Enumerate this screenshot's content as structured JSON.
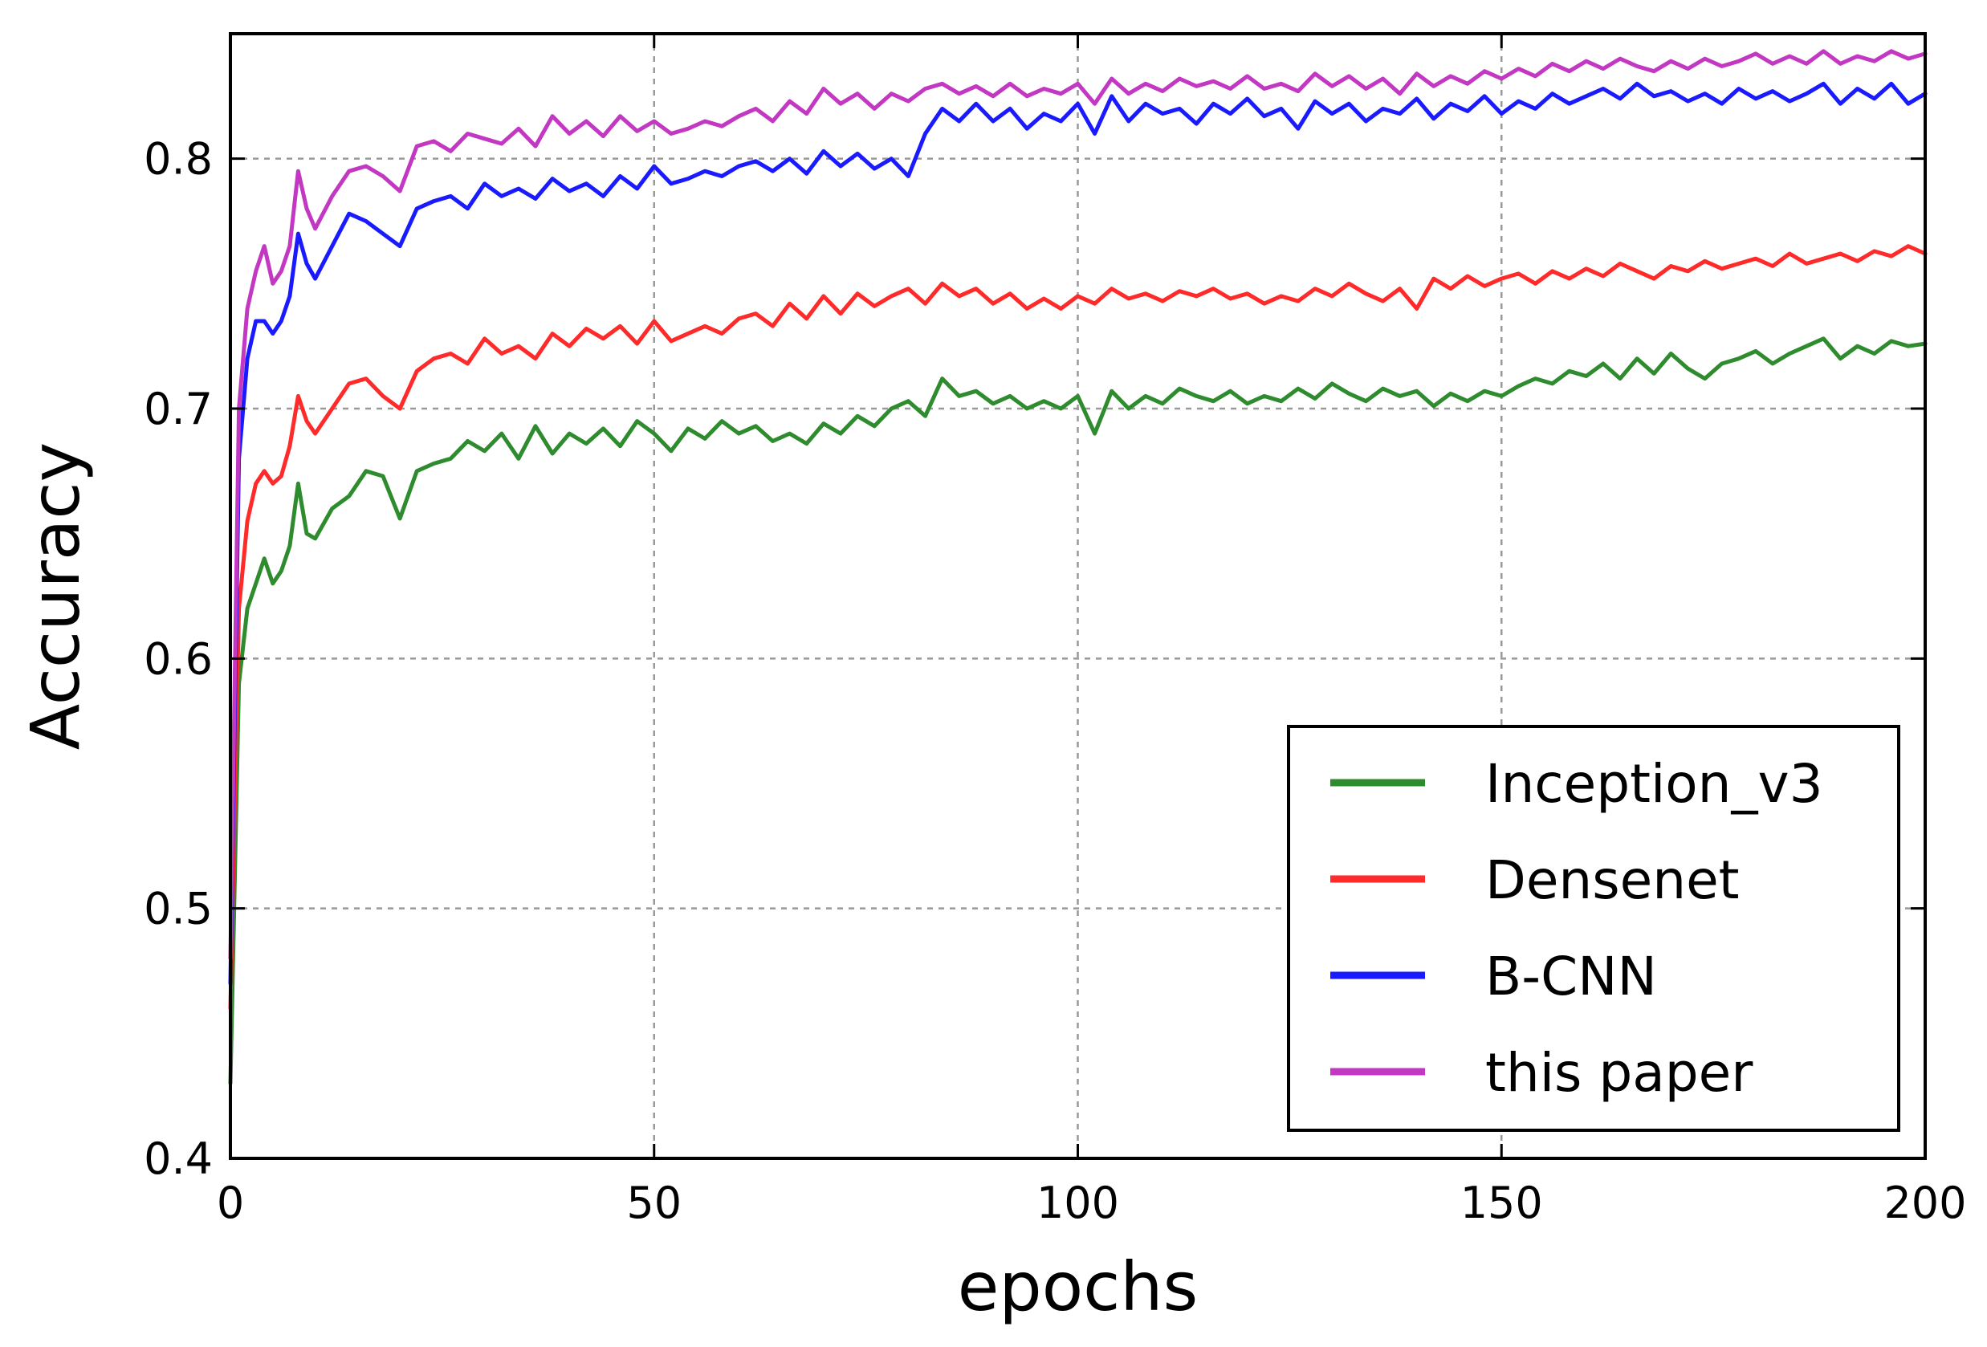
{
  "chart_data": {
    "type": "line",
    "title": "",
    "xlabel": "epochs",
    "ylabel": "Accuracy",
    "xlim": [
      0,
      200
    ],
    "ylim": [
      0.4,
      0.85
    ],
    "x_ticks": [
      0,
      50,
      100,
      150,
      200
    ],
    "x_tick_labels": [
      "0",
      "50",
      "100",
      "150",
      "200"
    ],
    "y_ticks": [
      0.4,
      0.5,
      0.6,
      0.7,
      0.8
    ],
    "y_tick_labels": [
      "0.4",
      "0.5",
      "0.6",
      "0.7",
      "0.8"
    ],
    "grid": true,
    "legend_position": "bottom-right",
    "series": [
      {
        "name": "Inception_v3",
        "color": "#2e8b2e",
        "x": [
          0,
          1,
          2,
          3,
          4,
          5,
          6,
          7,
          8,
          9,
          10,
          12,
          14,
          16,
          18,
          20,
          22,
          24,
          26,
          28,
          30,
          32,
          34,
          36,
          38,
          40,
          42,
          44,
          46,
          48,
          50,
          52,
          54,
          56,
          58,
          60,
          62,
          64,
          66,
          68,
          70,
          72,
          74,
          76,
          78,
          80,
          82,
          84,
          86,
          88,
          90,
          92,
          94,
          96,
          98,
          100,
          102,
          104,
          106,
          108,
          110,
          112,
          114,
          116,
          118,
          120,
          122,
          124,
          126,
          128,
          130,
          132,
          134,
          136,
          138,
          140,
          142,
          144,
          146,
          148,
          150,
          152,
          154,
          156,
          158,
          160,
          162,
          164,
          166,
          168,
          170,
          172,
          174,
          176,
          178,
          180,
          182,
          184,
          186,
          188,
          190,
          192,
          194,
          196,
          198,
          200
        ],
        "values": [
          0.43,
          0.59,
          0.62,
          0.63,
          0.64,
          0.63,
          0.635,
          0.645,
          0.67,
          0.65,
          0.648,
          0.66,
          0.665,
          0.675,
          0.673,
          0.656,
          0.675,
          0.678,
          0.68,
          0.687,
          0.683,
          0.69,
          0.68,
          0.693,
          0.682,
          0.69,
          0.686,
          0.692,
          0.685,
          0.695,
          0.69,
          0.683,
          0.692,
          0.688,
          0.695,
          0.69,
          0.693,
          0.687,
          0.69,
          0.686,
          0.694,
          0.69,
          0.697,
          0.693,
          0.7,
          0.703,
          0.697,
          0.712,
          0.705,
          0.707,
          0.702,
          0.705,
          0.7,
          0.703,
          0.7,
          0.705,
          0.69,
          0.707,
          0.7,
          0.705,
          0.702,
          0.708,
          0.705,
          0.703,
          0.707,
          0.702,
          0.705,
          0.703,
          0.708,
          0.704,
          0.71,
          0.706,
          0.703,
          0.708,
          0.705,
          0.707,
          0.701,
          0.706,
          0.703,
          0.707,
          0.705,
          0.709,
          0.712,
          0.71,
          0.715,
          0.713,
          0.718,
          0.712,
          0.72,
          0.714,
          0.722,
          0.716,
          0.712,
          0.718,
          0.72,
          0.723,
          0.718,
          0.722,
          0.725,
          0.728,
          0.72,
          0.725,
          0.722,
          0.727,
          0.725,
          0.726
        ]
      },
      {
        "name": "Densenet",
        "color": "#ff2a2a",
        "x": [
          0,
          1,
          2,
          3,
          4,
          5,
          6,
          7,
          8,
          9,
          10,
          12,
          14,
          16,
          18,
          20,
          22,
          24,
          26,
          28,
          30,
          32,
          34,
          36,
          38,
          40,
          42,
          44,
          46,
          48,
          50,
          52,
          54,
          56,
          58,
          60,
          62,
          64,
          66,
          68,
          70,
          72,
          74,
          76,
          78,
          80,
          82,
          84,
          86,
          88,
          90,
          92,
          94,
          96,
          98,
          100,
          102,
          104,
          106,
          108,
          110,
          112,
          114,
          116,
          118,
          120,
          122,
          124,
          126,
          128,
          130,
          132,
          134,
          136,
          138,
          140,
          142,
          144,
          146,
          148,
          150,
          152,
          154,
          156,
          158,
          160,
          162,
          164,
          166,
          168,
          170,
          172,
          174,
          176,
          178,
          180,
          182,
          184,
          186,
          188,
          190,
          192,
          194,
          196,
          198,
          200
        ],
        "values": [
          0.46,
          0.62,
          0.655,
          0.67,
          0.675,
          0.67,
          0.673,
          0.685,
          0.705,
          0.695,
          0.69,
          0.7,
          0.71,
          0.712,
          0.705,
          0.7,
          0.715,
          0.72,
          0.722,
          0.718,
          0.728,
          0.722,
          0.725,
          0.72,
          0.73,
          0.725,
          0.732,
          0.728,
          0.733,
          0.726,
          0.735,
          0.727,
          0.73,
          0.733,
          0.73,
          0.736,
          0.738,
          0.733,
          0.742,
          0.736,
          0.745,
          0.738,
          0.746,
          0.741,
          0.745,
          0.748,
          0.742,
          0.75,
          0.745,
          0.748,
          0.742,
          0.746,
          0.74,
          0.744,
          0.74,
          0.745,
          0.742,
          0.748,
          0.744,
          0.746,
          0.743,
          0.747,
          0.745,
          0.748,
          0.744,
          0.746,
          0.742,
          0.745,
          0.743,
          0.748,
          0.745,
          0.75,
          0.746,
          0.743,
          0.748,
          0.74,
          0.752,
          0.748,
          0.753,
          0.749,
          0.752,
          0.754,
          0.75,
          0.755,
          0.752,
          0.756,
          0.753,
          0.758,
          0.755,
          0.752,
          0.757,
          0.755,
          0.759,
          0.756,
          0.758,
          0.76,
          0.757,
          0.762,
          0.758,
          0.76,
          0.762,
          0.759,
          0.763,
          0.761,
          0.765,
          0.762
        ]
      },
      {
        "name": "B-CNN",
        "color": "#1a1aff",
        "x": [
          0,
          1,
          2,
          3,
          4,
          5,
          6,
          7,
          8,
          9,
          10,
          12,
          14,
          16,
          18,
          20,
          22,
          24,
          26,
          28,
          30,
          32,
          34,
          36,
          38,
          40,
          42,
          44,
          46,
          48,
          50,
          52,
          54,
          56,
          58,
          60,
          62,
          64,
          66,
          68,
          70,
          72,
          74,
          76,
          78,
          80,
          82,
          84,
          86,
          88,
          90,
          92,
          94,
          96,
          98,
          100,
          102,
          104,
          106,
          108,
          110,
          112,
          114,
          116,
          118,
          120,
          122,
          124,
          126,
          128,
          130,
          132,
          134,
          136,
          138,
          140,
          142,
          144,
          146,
          148,
          150,
          152,
          154,
          156,
          158,
          160,
          162,
          164,
          166,
          168,
          170,
          172,
          174,
          176,
          178,
          180,
          182,
          184,
          186,
          188,
          190,
          192,
          194,
          196,
          198,
          200
        ],
        "values": [
          0.47,
          0.68,
          0.72,
          0.735,
          0.735,
          0.73,
          0.735,
          0.745,
          0.77,
          0.758,
          0.752,
          0.765,
          0.778,
          0.775,
          0.77,
          0.765,
          0.78,
          0.783,
          0.785,
          0.78,
          0.79,
          0.785,
          0.788,
          0.784,
          0.792,
          0.787,
          0.79,
          0.785,
          0.793,
          0.788,
          0.797,
          0.79,
          0.792,
          0.795,
          0.793,
          0.797,
          0.799,
          0.795,
          0.8,
          0.794,
          0.803,
          0.797,
          0.802,
          0.796,
          0.8,
          0.793,
          0.81,
          0.82,
          0.815,
          0.822,
          0.815,
          0.82,
          0.812,
          0.818,
          0.815,
          0.822,
          0.81,
          0.825,
          0.815,
          0.822,
          0.818,
          0.82,
          0.814,
          0.822,
          0.818,
          0.824,
          0.817,
          0.82,
          0.812,
          0.823,
          0.818,
          0.822,
          0.815,
          0.82,
          0.818,
          0.824,
          0.816,
          0.822,
          0.819,
          0.825,
          0.818,
          0.823,
          0.82,
          0.826,
          0.822,
          0.825,
          0.828,
          0.824,
          0.83,
          0.825,
          0.827,
          0.823,
          0.826,
          0.822,
          0.828,
          0.824,
          0.827,
          0.823,
          0.826,
          0.83,
          0.822,
          0.828,
          0.824,
          0.83,
          0.822,
          0.826
        ]
      },
      {
        "name": "this paper",
        "color": "#c238c2",
        "x": [
          0,
          1,
          2,
          3,
          4,
          5,
          6,
          7,
          8,
          9,
          10,
          12,
          14,
          16,
          18,
          20,
          22,
          24,
          26,
          28,
          30,
          32,
          34,
          36,
          38,
          40,
          42,
          44,
          46,
          48,
          50,
          52,
          54,
          56,
          58,
          60,
          62,
          64,
          66,
          68,
          70,
          72,
          74,
          76,
          78,
          80,
          82,
          84,
          86,
          88,
          90,
          92,
          94,
          96,
          98,
          100,
          102,
          104,
          106,
          108,
          110,
          112,
          114,
          116,
          118,
          120,
          122,
          124,
          126,
          128,
          130,
          132,
          134,
          136,
          138,
          140,
          142,
          144,
          146,
          148,
          150,
          152,
          154,
          156,
          158,
          160,
          162,
          164,
          166,
          168,
          170,
          172,
          174,
          176,
          178,
          180,
          182,
          184,
          186,
          188,
          190,
          192,
          194,
          196,
          198,
          200
        ],
        "values": [
          0.48,
          0.7,
          0.74,
          0.755,
          0.765,
          0.75,
          0.755,
          0.765,
          0.795,
          0.78,
          0.772,
          0.785,
          0.795,
          0.797,
          0.793,
          0.787,
          0.805,
          0.807,
          0.803,
          0.81,
          0.808,
          0.806,
          0.812,
          0.805,
          0.817,
          0.81,
          0.815,
          0.809,
          0.817,
          0.811,
          0.815,
          0.81,
          0.812,
          0.815,
          0.813,
          0.817,
          0.82,
          0.815,
          0.823,
          0.818,
          0.828,
          0.822,
          0.826,
          0.82,
          0.826,
          0.823,
          0.828,
          0.83,
          0.826,
          0.829,
          0.825,
          0.83,
          0.825,
          0.828,
          0.826,
          0.83,
          0.822,
          0.832,
          0.826,
          0.83,
          0.827,
          0.832,
          0.829,
          0.831,
          0.828,
          0.833,
          0.828,
          0.83,
          0.827,
          0.834,
          0.829,
          0.833,
          0.828,
          0.832,
          0.826,
          0.834,
          0.829,
          0.833,
          0.83,
          0.835,
          0.832,
          0.836,
          0.833,
          0.838,
          0.835,
          0.839,
          0.836,
          0.84,
          0.837,
          0.835,
          0.839,
          0.836,
          0.84,
          0.837,
          0.839,
          0.842,
          0.838,
          0.841,
          0.838,
          0.843,
          0.838,
          0.841,
          0.839,
          0.843,
          0.84,
          0.842
        ]
      }
    ]
  }
}
